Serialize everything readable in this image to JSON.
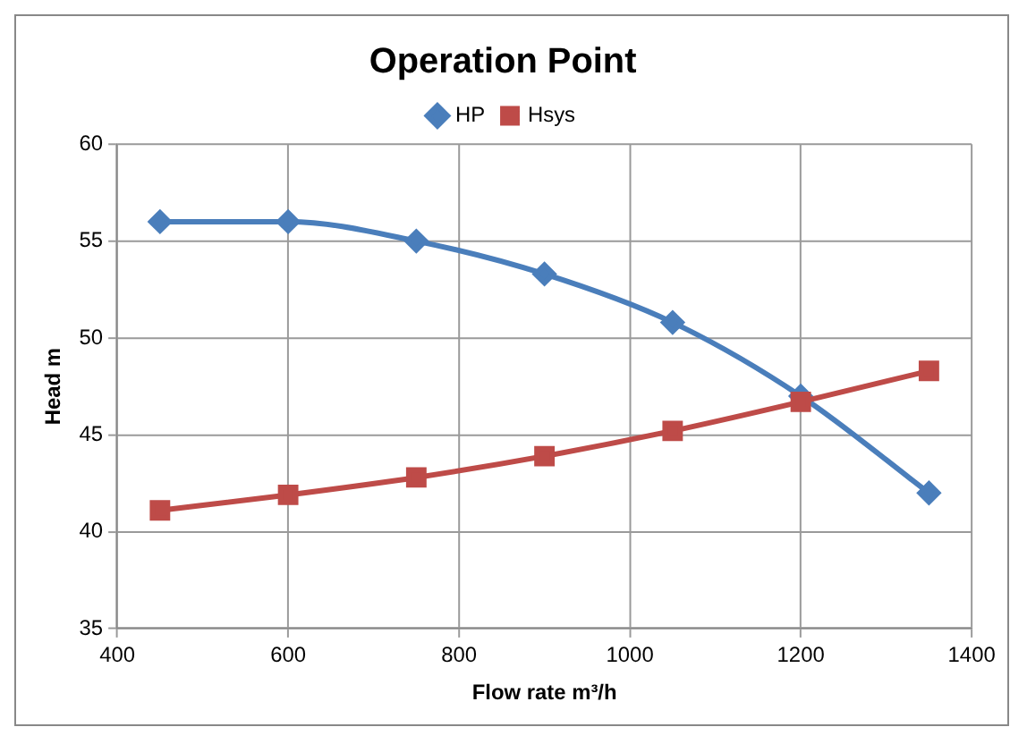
{
  "chart_data": {
    "type": "line",
    "title": "Operation Point",
    "xlabel": "Flow rate m³/h",
    "ylabel": "Head m",
    "x": [
      450,
      600,
      750,
      900,
      1050,
      1200,
      1350
    ],
    "series": [
      {
        "name": "HP",
        "color": "#4a7ebb",
        "marker": "diamond",
        "values": [
          56,
          56,
          55,
          53.3,
          50.8,
          47,
          42
        ]
      },
      {
        "name": "Hsys",
        "color": "#be4b48",
        "marker": "square",
        "values": [
          41.1,
          41.9,
          42.8,
          43.9,
          45.2,
          46.7,
          48.3
        ]
      }
    ],
    "xlim": [
      400,
      1400
    ],
    "xticks": [
      400,
      600,
      800,
      1000,
      1200,
      1400
    ],
    "ylim": [
      35,
      60
    ],
    "yticks": [
      35,
      40,
      45,
      50,
      55,
      60
    ],
    "grid": true,
    "legend": "top",
    "line_style": "solid"
  }
}
